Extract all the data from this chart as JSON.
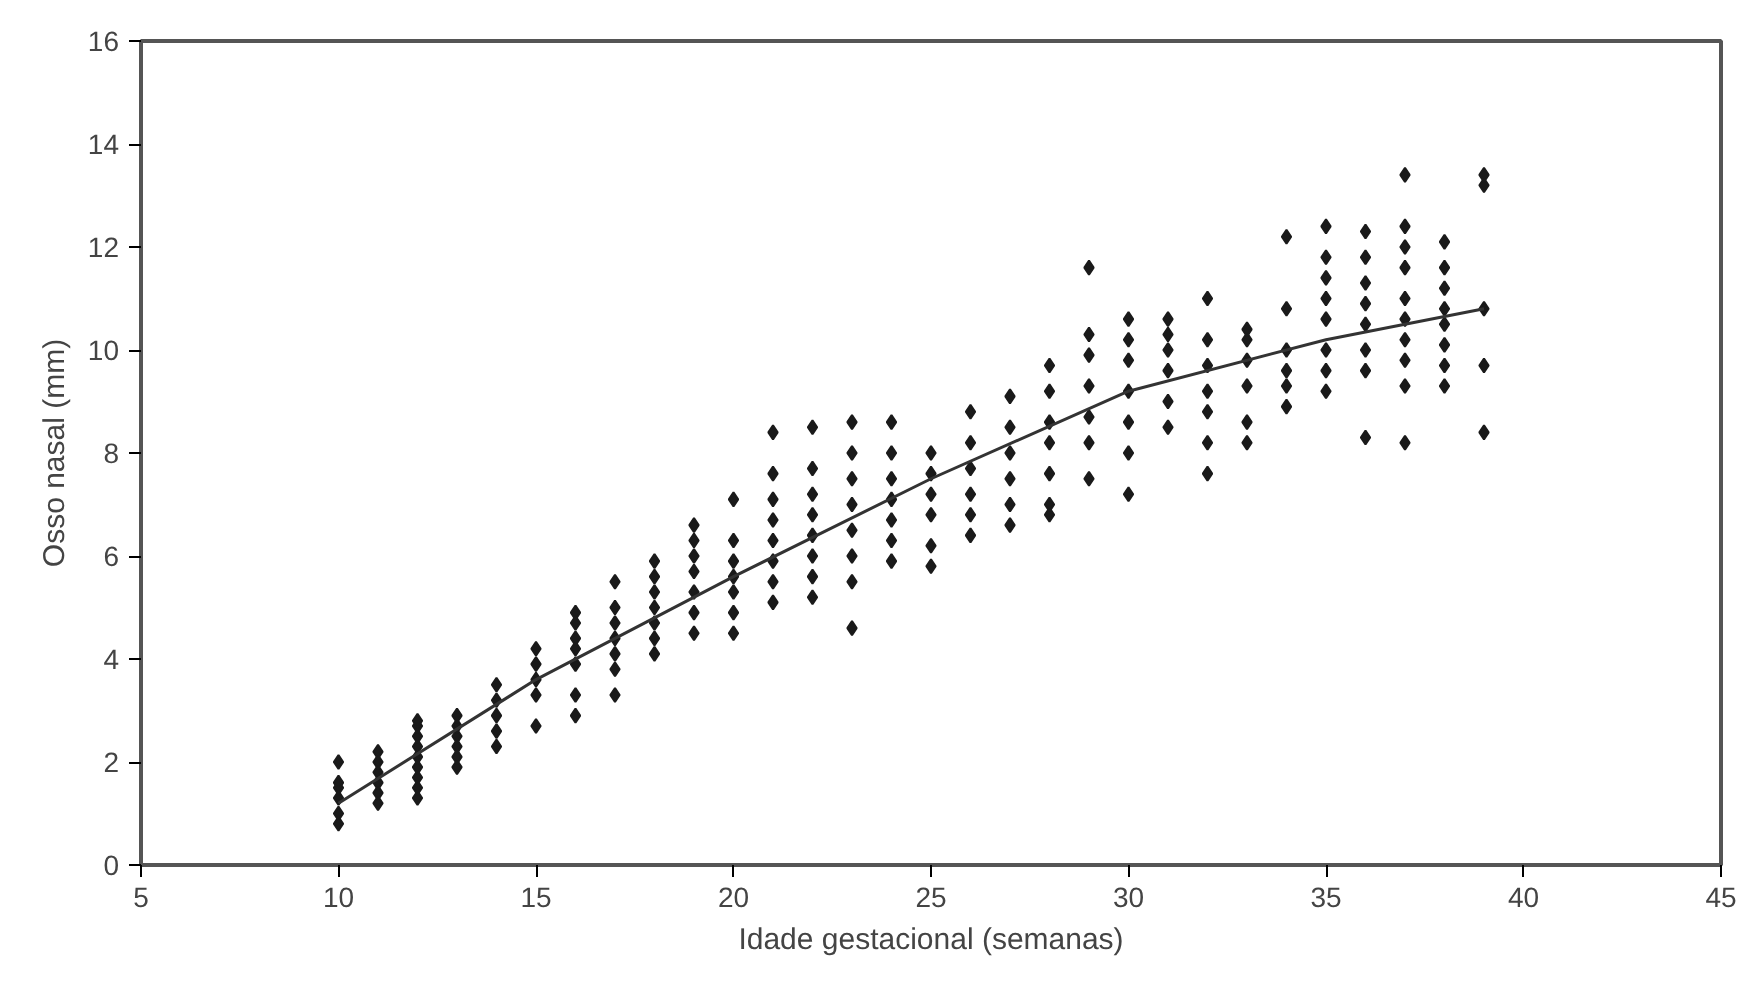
{
  "chart_data": {
    "type": "scatter",
    "xlabel": "Idade gestacional (semanas)",
    "ylabel": "Osso nasal (mm)",
    "xlim": [
      5,
      45
    ],
    "xticks": [
      5,
      10,
      15,
      20,
      25,
      30,
      35,
      40,
      45
    ],
    "ylim": [
      0,
      16
    ],
    "yticks": [
      0,
      2,
      4,
      6,
      8,
      10,
      12,
      14,
      16
    ],
    "grid": false,
    "marker": "diamond",
    "series": [
      {
        "color": "#1a1a1a",
        "x": [
          10,
          10,
          10,
          10,
          10,
          10,
          11,
          11,
          11,
          11,
          11,
          11,
          12,
          12,
          12,
          12,
          12,
          12,
          12,
          12,
          12,
          13,
          13,
          13,
          13,
          13,
          13,
          14,
          14,
          14,
          14,
          14,
          15,
          15,
          15,
          15,
          15,
          16,
          16,
          16,
          16,
          16,
          16,
          16,
          17,
          17,
          17,
          17,
          17,
          17,
          17,
          18,
          18,
          18,
          18,
          18,
          18,
          18,
          19,
          19,
          19,
          19,
          19,
          19,
          19,
          20,
          20,
          20,
          20,
          20,
          20,
          20,
          21,
          21,
          21,
          21,
          21,
          21,
          21,
          21,
          22,
          22,
          22,
          22,
          22,
          22,
          22,
          22,
          23,
          23,
          23,
          23,
          23,
          23,
          23,
          23,
          24,
          24,
          24,
          24,
          24,
          24,
          24,
          25,
          25,
          25,
          25,
          25,
          25,
          26,
          26,
          26,
          26,
          26,
          26,
          27,
          27,
          27,
          27,
          27,
          27,
          28,
          28,
          28,
          28,
          28,
          28,
          28,
          29,
          29,
          29,
          29,
          29,
          29,
          29,
          30,
          30,
          30,
          30,
          30,
          30,
          30,
          31,
          31,
          31,
          31,
          31,
          31,
          32,
          32,
          32,
          32,
          32,
          32,
          32,
          33,
          33,
          33,
          33,
          33,
          33,
          34,
          34,
          34,
          34,
          34,
          34,
          35,
          35,
          35,
          35,
          35,
          35,
          35,
          35,
          36,
          36,
          36,
          36,
          36,
          36,
          36,
          36,
          37,
          37,
          37,
          37,
          37,
          37,
          37,
          37,
          37,
          37,
          38,
          38,
          38,
          38,
          38,
          38,
          38,
          38,
          39,
          39,
          39,
          39,
          39
        ],
        "values": [
          0.8,
          1.0,
          1.3,
          1.5,
          1.6,
          2.0,
          1.2,
          1.4,
          1.6,
          1.8,
          2.0,
          2.2,
          1.3,
          1.5,
          1.7,
          1.9,
          2.1,
          2.3,
          2.5,
          2.7,
          2.8,
          1.9,
          2.1,
          2.3,
          2.5,
          2.7,
          2.9,
          2.3,
          2.6,
          2.9,
          3.2,
          3.5,
          2.7,
          3.3,
          3.6,
          3.9,
          4.2,
          2.9,
          3.3,
          3.9,
          4.2,
          4.4,
          4.7,
          4.9,
          3.3,
          3.8,
          4.1,
          4.4,
          4.7,
          5.0,
          5.5,
          4.1,
          4.4,
          4.7,
          5.0,
          5.3,
          5.6,
          5.9,
          4.5,
          4.9,
          5.3,
          5.7,
          6.0,
          6.3,
          6.6,
          4.5,
          4.9,
          5.3,
          5.6,
          5.9,
          6.3,
          7.1,
          5.1,
          5.5,
          5.9,
          6.3,
          6.7,
          7.1,
          7.6,
          8.4,
          5.2,
          5.6,
          6.0,
          6.4,
          6.8,
          7.2,
          7.7,
          8.5,
          4.6,
          5.5,
          6.0,
          6.5,
          7.0,
          7.5,
          8.0,
          8.6,
          5.9,
          6.3,
          6.7,
          7.1,
          7.5,
          8.0,
          8.6,
          5.8,
          6.2,
          6.8,
          7.2,
          7.6,
          8.0,
          6.4,
          6.8,
          7.2,
          7.7,
          8.2,
          8.8,
          6.6,
          7.0,
          7.5,
          8.0,
          8.5,
          9.1,
          6.8,
          7.0,
          7.6,
          8.2,
          8.6,
          9.2,
          9.7,
          7.5,
          8.2,
          8.7,
          9.3,
          9.9,
          10.3,
          11.6,
          7.2,
          8.0,
          8.6,
          9.2,
          9.8,
          10.2,
          10.6,
          8.5,
          9.0,
          9.6,
          10.0,
          10.3,
          10.6,
          7.6,
          8.2,
          8.8,
          9.2,
          9.7,
          10.2,
          11.0,
          8.2,
          8.6,
          9.3,
          9.8,
          10.2,
          10.4,
          8.9,
          9.3,
          9.6,
          10.0,
          10.8,
          12.2,
          9.2,
          9.6,
          10.0,
          10.6,
          11.0,
          11.4,
          11.8,
          12.4,
          8.3,
          9.6,
          10.0,
          10.5,
          10.9,
          11.3,
          11.8,
          12.3,
          8.2,
          9.3,
          9.8,
          10.2,
          10.6,
          11.0,
          11.6,
          12.0,
          12.4,
          13.4,
          9.3,
          9.7,
          10.1,
          10.5,
          10.8,
          11.2,
          11.6,
          12.1,
          8.4,
          9.7,
          10.8,
          13.2,
          13.4
        ]
      },
      {
        "type": "line",
        "color": "#333333",
        "marker": "none",
        "line_style": "solid",
        "x": [
          10,
          15,
          20,
          25,
          30,
          35,
          39
        ],
        "values": [
          1.2,
          3.6,
          5.6,
          7.5,
          9.2,
          10.2,
          10.8
        ]
      }
    ]
  }
}
